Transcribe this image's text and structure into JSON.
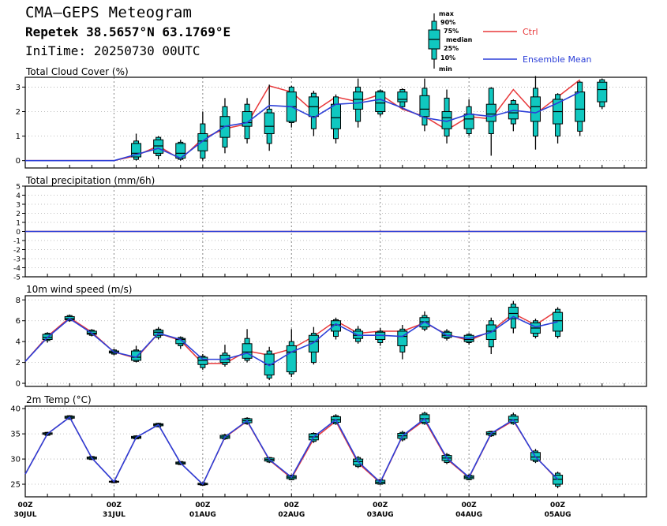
{
  "header": {
    "title": "CMA—GEPS Meteogram",
    "location": "Repetek 38.5657°N 63.1769°E",
    "init_time": "IniTime: 20250730 00UTC"
  },
  "legend": {
    "box_labels": [
      "max",
      "90%",
      "75%",
      "median",
      "25%",
      "10%",
      "min"
    ],
    "ctrl_label": "Ctrl",
    "mean_label": "Ensemble Mean",
    "colors": {
      "ctrl": "#e8383a",
      "mean": "#2c3fd8",
      "box": "#10c8c0"
    }
  },
  "x_axis": {
    "ticks": [
      {
        "hour": "00Z",
        "date": "30JUL"
      },
      {
        "hour": "00Z",
        "date": "31JUL"
      },
      {
        "hour": "00Z",
        "date": "01AUG"
      },
      {
        "hour": "00Z",
        "date": "02AUG"
      },
      {
        "hour": "00Z",
        "date": "03AUG"
      },
      {
        "hour": "00Z",
        "date": "04AUG"
      },
      {
        "hour": "00Z",
        "date": "05AUG"
      }
    ]
  },
  "chart_data": [
    {
      "type": "box",
      "title": "Total Cloud Cover (%)",
      "ylim": [
        -0.3,
        3.4
      ],
      "yticks": [
        0,
        1,
        2,
        3
      ],
      "ctrl": [
        0,
        0,
        0,
        0,
        0,
        0.2,
        0.6,
        0.05,
        0.9,
        1.3,
        1.5,
        3.05,
        2.8,
        2.0,
        2.6,
        2.4,
        2.7,
        2.1,
        1.8,
        1.25,
        1.8,
        1.7,
        2.9,
        1.9,
        2.6,
        3.3
      ],
      "mean": [
        0,
        0,
        0,
        0,
        0,
        0.25,
        0.5,
        0.1,
        0.8,
        1.4,
        1.55,
        2.25,
        2.2,
        1.75,
        2.3,
        2.35,
        2.5,
        2.15,
        1.75,
        1.6,
        1.9,
        1.8,
        2.05,
        1.95,
        2.35,
        2.8
      ],
      "boxes": [
        {
          "i": 5,
          "min": 0,
          "p10": 0.05,
          "p25": 0.15,
          "median": 0.3,
          "p75": 0.7,
          "p90": 0.8,
          "max": 1.1
        },
        {
          "i": 6,
          "min": 0.05,
          "p10": 0.2,
          "p25": 0.3,
          "median": 0.6,
          "p75": 0.85,
          "p90": 0.95,
          "max": 1.0
        },
        {
          "i": 7,
          "min": 0,
          "p10": 0.05,
          "p25": 0.1,
          "median": 0.3,
          "p75": 0.7,
          "p90": 0.75,
          "max": 0.85
        },
        {
          "i": 8,
          "min": 0,
          "p10": 0.1,
          "p25": 0.4,
          "median": 0.8,
          "p75": 1.1,
          "p90": 1.5,
          "max": 2.0
        },
        {
          "i": 9,
          "min": 0.3,
          "p10": 0.55,
          "p25": 0.95,
          "median": 1.4,
          "p75": 1.8,
          "p90": 2.2,
          "max": 2.55
        },
        {
          "i": 10,
          "min": 0.7,
          "p10": 0.9,
          "p25": 1.4,
          "median": 1.55,
          "p75": 2.0,
          "p90": 2.3,
          "max": 2.55
        },
        {
          "i": 11,
          "min": 0.4,
          "p10": 0.7,
          "p25": 1.1,
          "median": 1.4,
          "p75": 1.95,
          "p90": 2.1,
          "max": 3.1
        },
        {
          "i": 12,
          "min": 1.35,
          "p10": 1.55,
          "p25": 1.6,
          "median": 2.2,
          "p75": 2.8,
          "p90": 3.0,
          "max": 3.05
        },
        {
          "i": 13,
          "min": 1.0,
          "p10": 1.3,
          "p25": 1.8,
          "median": 2.2,
          "p75": 2.6,
          "p90": 2.75,
          "max": 2.85
        },
        {
          "i": 14,
          "min": 0.7,
          "p10": 0.9,
          "p25": 1.3,
          "median": 1.75,
          "p75": 2.3,
          "p90": 2.6,
          "max": 2.7
        },
        {
          "i": 15,
          "min": 1.35,
          "p10": 1.6,
          "p25": 2.1,
          "median": 2.5,
          "p75": 2.8,
          "p90": 3.0,
          "max": 3.35
        },
        {
          "i": 16,
          "min": 1.8,
          "p10": 1.9,
          "p25": 2.0,
          "median": 2.35,
          "p75": 2.8,
          "p90": 2.85,
          "max": 2.9
        },
        {
          "i": 17,
          "min": 2.1,
          "p10": 2.2,
          "p25": 2.4,
          "median": 2.5,
          "p75": 2.8,
          "p90": 2.9,
          "max": 2.95
        },
        {
          "i": 18,
          "min": 1.2,
          "p10": 1.45,
          "p25": 1.8,
          "median": 2.1,
          "p75": 2.65,
          "p90": 2.95,
          "max": 3.35
        },
        {
          "i": 19,
          "min": 0.7,
          "p10": 1.0,
          "p25": 1.3,
          "median": 1.75,
          "p75": 2.0,
          "p90": 2.55,
          "max": 2.9
        },
        {
          "i": 20,
          "min": 1.0,
          "p10": 1.1,
          "p25": 1.3,
          "median": 1.7,
          "p75": 1.9,
          "p90": 2.2,
          "max": 2.5
        },
        {
          "i": 21,
          "min": 0.2,
          "p10": 1.1,
          "p25": 1.6,
          "median": 1.9,
          "p75": 2.3,
          "p90": 2.95,
          "max": 3.0
        },
        {
          "i": 22,
          "min": 1.2,
          "p10": 1.5,
          "p25": 1.7,
          "median": 1.95,
          "p75": 2.3,
          "p90": 2.45,
          "max": 2.5
        },
        {
          "i": 23,
          "min": 0.45,
          "p10": 1.0,
          "p25": 1.6,
          "median": 2.2,
          "p75": 2.6,
          "p90": 2.95,
          "max": 3.45
        },
        {
          "i": 24,
          "min": 0.7,
          "p10": 1.0,
          "p25": 1.5,
          "median": 2.0,
          "p75": 2.5,
          "p90": 2.7,
          "max": 2.75
        },
        {
          "i": 25,
          "min": 1.0,
          "p10": 1.2,
          "p25": 1.6,
          "median": 2.1,
          "p75": 2.8,
          "p90": 3.2,
          "max": 3.25
        },
        {
          "i": 26,
          "min": 2.1,
          "p10": 2.2,
          "p25": 2.4,
          "median": 2.9,
          "p75": 3.2,
          "p90": 3.3,
          "max": 3.35
        }
      ]
    },
    {
      "type": "line",
      "title": "Total precipitation (mm/6h)",
      "ylim": [
        -5,
        5
      ],
      "yticks": [
        5,
        4,
        3,
        2,
        1,
        0,
        -1,
        -2,
        -3,
        -4,
        -5
      ],
      "ctrl": [
        0,
        0,
        0,
        0,
        0,
        0,
        0,
        0,
        0,
        0,
        0,
        0,
        0,
        0,
        0,
        0,
        0,
        0,
        0,
        0,
        0,
        0,
        0,
        0,
        0,
        0,
        0,
        0,
        0
      ],
      "mean": [
        0,
        0,
        0,
        0,
        0,
        0,
        0,
        0,
        0,
        0,
        0,
        0,
        0,
        0,
        0,
        0,
        0,
        0,
        0,
        0,
        0,
        0,
        0,
        0,
        0,
        0,
        0,
        0,
        0
      ],
      "boxes": []
    },
    {
      "type": "box",
      "title": "10m wind speed (m/s)",
      "ylim": [
        -0.3,
        8.4
      ],
      "yticks": [
        0,
        2,
        4,
        6,
        8
      ],
      "ctrl": [
        2.1,
        4.5,
        6.3,
        4.9,
        3.0,
        2.4,
        4.8,
        4.1,
        1.9,
        1.9,
        3.1,
        2.7,
        3.3,
        4.5,
        6.0,
        4.8,
        5.0,
        5.0,
        5.8,
        4.7,
        4.1,
        5.0,
        6.7,
        5.6,
        7.0
      ],
      "mean": [
        2.1,
        4.4,
        6.2,
        4.8,
        3.0,
        2.5,
        4.8,
        4.2,
        2.3,
        2.3,
        2.9,
        1.7,
        3.0,
        3.9,
        5.7,
        4.6,
        4.6,
        4.5,
        5.9,
        4.6,
        4.3,
        4.9,
        6.4,
        5.4,
        5.9
      ],
      "boxes": [
        {
          "i": 1,
          "min": 3.9,
          "p10": 4.1,
          "p25": 4.2,
          "median": 4.4,
          "p75": 4.7,
          "p90": 4.8,
          "max": 4.9
        },
        {
          "i": 2,
          "min": 5.9,
          "p10": 6.0,
          "p25": 6.1,
          "median": 6.2,
          "p75": 6.4,
          "p90": 6.5,
          "max": 6.6
        },
        {
          "i": 3,
          "min": 4.5,
          "p10": 4.6,
          "p25": 4.7,
          "median": 4.8,
          "p75": 5.0,
          "p90": 5.1,
          "max": 5.2
        },
        {
          "i": 4,
          "min": 2.7,
          "p10": 2.8,
          "p25": 2.9,
          "median": 3.0,
          "p75": 3.1,
          "p90": 3.2,
          "max": 3.3
        },
        {
          "i": 5,
          "min": 2.0,
          "p10": 2.1,
          "p25": 2.2,
          "median": 2.5,
          "p75": 3.1,
          "p90": 3.2,
          "max": 3.6
        },
        {
          "i": 6,
          "min": 4.2,
          "p10": 4.4,
          "p25": 4.6,
          "median": 4.9,
          "p75": 5.1,
          "p90": 5.2,
          "max": 5.4
        },
        {
          "i": 7,
          "min": 3.3,
          "p10": 3.6,
          "p25": 3.8,
          "median": 4.2,
          "p75": 4.3,
          "p90": 4.4,
          "max": 4.5
        },
        {
          "i": 8,
          "min": 1.3,
          "p10": 1.5,
          "p25": 1.8,
          "median": 2.2,
          "p75": 2.5,
          "p90": 2.6,
          "max": 2.8
        },
        {
          "i": 9,
          "min": 1.6,
          "p10": 1.8,
          "p25": 2.0,
          "median": 2.3,
          "p75": 2.7,
          "p90": 2.9,
          "max": 3.7
        },
        {
          "i": 10,
          "min": 2.0,
          "p10": 2.2,
          "p25": 2.4,
          "median": 3.0,
          "p75": 3.8,
          "p90": 4.3,
          "max": 5.2
        },
        {
          "i": 11,
          "min": 0.3,
          "p10": 0.5,
          "p25": 0.8,
          "median": 1.8,
          "p75": 2.8,
          "p90": 3.1,
          "max": 3.5
        },
        {
          "i": 12,
          "min": 0.6,
          "p10": 0.9,
          "p25": 1.1,
          "median": 3.0,
          "p75": 3.6,
          "p90": 4.0,
          "max": 5.2
        },
        {
          "i": 13,
          "min": 1.8,
          "p10": 2.0,
          "p25": 3.0,
          "median": 4.0,
          "p75": 4.6,
          "p90": 4.8,
          "max": 5.4
        },
        {
          "i": 14,
          "min": 4.2,
          "p10": 4.5,
          "p25": 5.0,
          "median": 5.6,
          "p75": 6.0,
          "p90": 6.1,
          "max": 6.3
        },
        {
          "i": 15,
          "min": 3.8,
          "p10": 4.0,
          "p25": 4.3,
          "median": 4.6,
          "p75": 5.0,
          "p90": 5.2,
          "max": 5.5
        },
        {
          "i": 16,
          "min": 3.6,
          "p10": 3.9,
          "p25": 4.2,
          "median": 4.6,
          "p75": 4.9,
          "p90": 5.0,
          "max": 5.3
        },
        {
          "i": 17,
          "min": 2.3,
          "p10": 3.0,
          "p25": 3.6,
          "median": 4.5,
          "p75": 5.0,
          "p90": 5.2,
          "max": 5.6
        },
        {
          "i": 18,
          "min": 5.0,
          "p10": 5.2,
          "p25": 5.4,
          "median": 5.9,
          "p75": 6.3,
          "p90": 6.5,
          "max": 6.9
        },
        {
          "i": 19,
          "min": 4.1,
          "p10": 4.3,
          "p25": 4.4,
          "median": 4.6,
          "p75": 4.9,
          "p90": 5.0,
          "max": 5.2
        },
        {
          "i": 20,
          "min": 3.7,
          "p10": 3.9,
          "p25": 4.0,
          "median": 4.2,
          "p75": 4.6,
          "p90": 4.7,
          "max": 4.8
        },
        {
          "i": 21,
          "min": 2.8,
          "p10": 3.5,
          "p25": 4.2,
          "median": 5.0,
          "p75": 5.6,
          "p90": 6.0,
          "max": 6.3
        },
        {
          "i": 22,
          "min": 4.8,
          "p10": 5.3,
          "p25": 6.2,
          "median": 6.7,
          "p75": 7.3,
          "p90": 7.6,
          "max": 7.9
        },
        {
          "i": 23,
          "min": 4.3,
          "p10": 4.5,
          "p25": 4.8,
          "median": 5.3,
          "p75": 5.8,
          "p90": 6.0,
          "max": 6.2
        },
        {
          "i": 24,
          "min": 4.3,
          "p10": 4.5,
          "p25": 5.0,
          "median": 6.0,
          "p75": 6.8,
          "p90": 7.1,
          "max": 7.3
        }
      ]
    },
    {
      "type": "box",
      "title": "2m Temp (°C)",
      "ylim": [
        22.5,
        40.5
      ],
      "yticks": [
        25,
        30,
        35,
        40
      ],
      "ctrl": [
        27.0,
        35.0,
        38.3,
        30.2,
        25.5,
        34.3,
        36.8,
        29.2,
        25.0,
        34.3,
        37.5,
        29.8,
        26.2,
        34.0,
        37.5,
        29.2,
        25.3,
        34.5,
        37.7,
        30.0,
        26.3,
        35.0,
        37.6,
        30.5,
        25.8
      ],
      "mean": [
        27.0,
        35.0,
        38.3,
        30.2,
        25.5,
        34.3,
        36.8,
        29.2,
        25.0,
        34.4,
        37.6,
        29.9,
        26.4,
        34.4,
        37.8,
        29.5,
        25.4,
        34.6,
        38.0,
        30.2,
        26.4,
        35.1,
        37.8,
        30.4,
        26.0
      ],
      "boxes": [
        {
          "i": 1,
          "min": 34.6,
          "p10": 34.7,
          "p25": 34.9,
          "median": 35.0,
          "p75": 35.2,
          "p90": 35.3,
          "max": 35.4
        },
        {
          "i": 2,
          "min": 37.8,
          "p10": 37.9,
          "p25": 38.1,
          "median": 38.3,
          "p75": 38.5,
          "p90": 38.6,
          "max": 38.7
        },
        {
          "i": 3,
          "min": 29.8,
          "p10": 29.9,
          "p25": 30.0,
          "median": 30.2,
          "p75": 30.4,
          "p90": 30.5,
          "max": 30.6
        },
        {
          "i": 4,
          "min": 25.2,
          "p10": 25.3,
          "p25": 25.4,
          "median": 25.5,
          "p75": 25.6,
          "p90": 25.7,
          "max": 25.8
        },
        {
          "i": 5,
          "min": 33.9,
          "p10": 34.0,
          "p25": 34.1,
          "median": 34.3,
          "p75": 34.5,
          "p90": 34.6,
          "max": 34.7
        },
        {
          "i": 6,
          "min": 36.3,
          "p10": 36.4,
          "p25": 36.6,
          "median": 36.8,
          "p75": 37.0,
          "p90": 37.1,
          "max": 37.2
        },
        {
          "i": 7,
          "min": 28.8,
          "p10": 28.9,
          "p25": 29.0,
          "median": 29.2,
          "p75": 29.4,
          "p90": 29.5,
          "max": 29.6
        },
        {
          "i": 8,
          "min": 24.7,
          "p10": 24.8,
          "p25": 24.9,
          "median": 25.0,
          "p75": 25.2,
          "p90": 25.3,
          "max": 25.4
        },
        {
          "i": 9,
          "min": 33.8,
          "p10": 34.0,
          "p25": 34.1,
          "median": 34.4,
          "p75": 34.7,
          "p90": 34.8,
          "max": 35.0
        },
        {
          "i": 10,
          "min": 36.8,
          "p10": 37.0,
          "p25": 37.2,
          "median": 37.6,
          "p75": 38.0,
          "p90": 38.1,
          "max": 38.3
        },
        {
          "i": 11,
          "min": 29.2,
          "p10": 29.4,
          "p25": 29.6,
          "median": 29.9,
          "p75": 30.2,
          "p90": 30.3,
          "max": 30.4
        },
        {
          "i": 12,
          "min": 25.8,
          "p10": 25.9,
          "p25": 26.1,
          "median": 26.4,
          "p75": 26.7,
          "p90": 26.8,
          "max": 26.9
        },
        {
          "i": 13,
          "min": 33.2,
          "p10": 33.5,
          "p25": 33.8,
          "median": 34.4,
          "p75": 35.0,
          "p90": 35.1,
          "max": 35.3
        },
        {
          "i": 14,
          "min": 36.8,
          "p10": 37.0,
          "p25": 37.3,
          "median": 37.8,
          "p75": 38.4,
          "p90": 38.6,
          "max": 38.9
        },
        {
          "i": 15,
          "min": 28.2,
          "p10": 28.5,
          "p25": 28.8,
          "median": 29.5,
          "p75": 30.0,
          "p90": 30.3,
          "max": 30.6
        },
        {
          "i": 16,
          "min": 24.9,
          "p10": 25.0,
          "p25": 25.1,
          "median": 25.4,
          "p75": 25.8,
          "p90": 25.9,
          "max": 26.0
        },
        {
          "i": 17,
          "min": 33.5,
          "p10": 33.8,
          "p25": 34.1,
          "median": 34.6,
          "p75": 35.1,
          "p90": 35.3,
          "max": 35.6
        },
        {
          "i": 18,
          "min": 36.8,
          "p10": 37.0,
          "p25": 37.3,
          "median": 38.0,
          "p75": 38.8,
          "p90": 39.1,
          "max": 39.4
        },
        {
          "i": 19,
          "min": 29.0,
          "p10": 29.3,
          "p25": 29.7,
          "median": 30.2,
          "p75": 30.7,
          "p90": 30.9,
          "max": 31.2
        },
        {
          "i": 20,
          "min": 25.8,
          "p10": 25.9,
          "p25": 26.1,
          "median": 26.4,
          "p75": 26.7,
          "p90": 26.8,
          "max": 27.0
        },
        {
          "i": 21,
          "min": 34.4,
          "p10": 34.6,
          "p25": 34.8,
          "median": 35.1,
          "p75": 35.4,
          "p90": 35.5,
          "max": 35.6
        },
        {
          "i": 22,
          "min": 36.8,
          "p10": 37.0,
          "p25": 37.3,
          "median": 37.8,
          "p75": 38.5,
          "p90": 38.8,
          "max": 39.2
        },
        {
          "i": 23,
          "min": 29.2,
          "p10": 29.5,
          "p25": 29.8,
          "median": 30.4,
          "p75": 31.3,
          "p90": 31.6,
          "max": 32.0
        },
        {
          "i": 24,
          "min": 24.2,
          "p10": 24.6,
          "p25": 25.0,
          "median": 26.0,
          "p75": 26.8,
          "p90": 27.2,
          "max": 27.5
        }
      ]
    }
  ]
}
